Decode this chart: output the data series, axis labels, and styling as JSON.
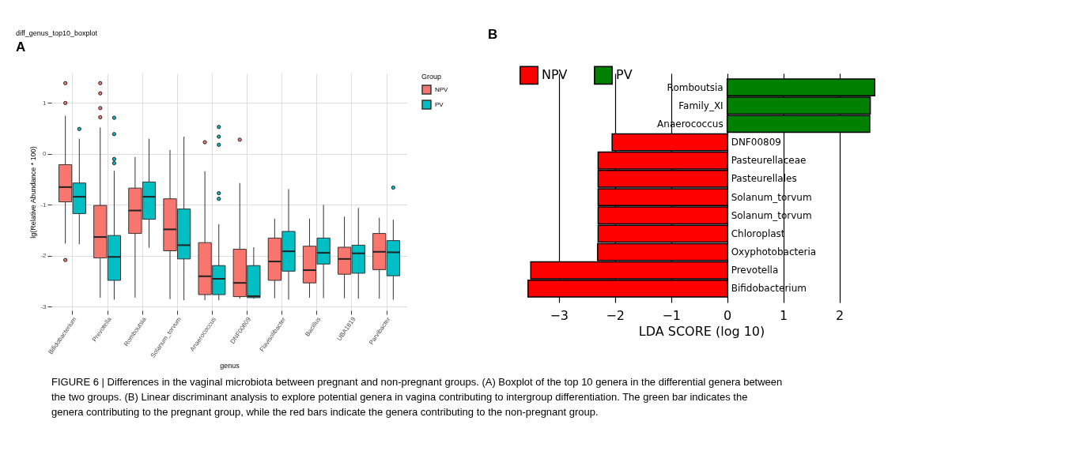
{
  "chart_data": [
    {
      "type": "box",
      "title": "diff_genus_top10_boxplot",
      "xlabel": "genus",
      "ylabel": "lg(Relative Abundance * 100)",
      "legend_title": "Group",
      "legend": "right",
      "grid": true,
      "categories": [
        "Bifidobacterium",
        "Prevotella",
        "Romboutsia",
        "Solanum_torvum",
        "Anaerococcus",
        "DNF00809",
        "Flavisolibacter",
        "Bacillus",
        "UBA1819",
        "Parvibacter"
      ],
      "ylim": [
        -3.07,
        1.58
      ],
      "yticks": [
        -3,
        -2,
        -1,
        0,
        1
      ],
      "annotations": [
        "A"
      ],
      "series": [
        {
          "name": "NPV",
          "color": "#f8766d",
          "boxes": [
            {
              "low": -1.76,
              "q1": -0.94,
              "median": -0.65,
              "q3": -0.21,
              "high": 0.75,
              "outliers": [
                1.39,
                1.0,
                -2.08
              ]
            },
            {
              "low": -2.82,
              "q1": -2.04,
              "median": -1.63,
              "q3": -1.01,
              "high": 0.52,
              "outliers": [
                1.39,
                1.19,
                0.9,
                0.72
              ]
            },
            {
              "low": -2.82,
              "q1": -1.56,
              "median": -1.11,
              "q3": -0.67,
              "high": -0.06
            },
            {
              "low": -2.85,
              "q1": -1.9,
              "median": -1.48,
              "q3": -0.88,
              "high": 0.08
            },
            {
              "low": -2.87,
              "q1": -2.76,
              "median": -2.4,
              "q3": -1.74,
              "high": -0.34,
              "outliers": [
                0.23
              ]
            },
            {
              "low": -2.84,
              "q1": -2.8,
              "median": -2.53,
              "q3": -1.87,
              "high": -0.57,
              "outliers": [
                0.28
              ]
            },
            {
              "low": -2.83,
              "q1": -2.48,
              "median": -2.11,
              "q3": -1.65,
              "high": -1.27
            },
            {
              "low": -2.82,
              "q1": -2.53,
              "median": -2.28,
              "q3": -1.81,
              "high": -1.27
            },
            {
              "low": -2.83,
              "q1": -2.36,
              "median": -2.06,
              "q3": -1.83,
              "high": -1.23
            },
            {
              "low": -2.84,
              "q1": -2.27,
              "median": -1.92,
              "q3": -1.56,
              "high": -1.25
            }
          ]
        },
        {
          "name": "PV",
          "color": "#00bfc4",
          "boxes": [
            {
              "low": -1.77,
              "q1": -1.17,
              "median": -0.84,
              "q3": -0.57,
              "high": 0.3,
              "outliers": [
                0.49
              ]
            },
            {
              "low": -2.86,
              "q1": -2.48,
              "median": -2.02,
              "q3": -1.6,
              "high": -0.33,
              "outliers": [
                0.71,
                0.39,
                -0.1,
                -0.18
              ]
            },
            {
              "low": -1.84,
              "q1": -1.28,
              "median": -0.84,
              "q3": -0.55,
              "high": 0.3
            },
            {
              "low": -2.87,
              "q1": -2.06,
              "median": -1.79,
              "q3": -1.08,
              "high": 0.34
            },
            {
              "low": -2.87,
              "q1": -2.76,
              "median": -2.45,
              "q3": -2.19,
              "high": -1.38,
              "outliers": [
                0.53,
                0.34,
                0.18,
                -0.77,
                -0.88
              ]
            },
            {
              "low": -2.84,
              "q1": -2.82,
              "median": -2.79,
              "q3": -2.19,
              "high": -1.83
            },
            {
              "low": -2.86,
              "q1": -2.3,
              "median": -1.91,
              "q3": -1.52,
              "high": -0.69
            },
            {
              "low": -2.83,
              "q1": -2.16,
              "median": -1.94,
              "q3": -1.65,
              "high": -1.0
            },
            {
              "low": -2.84,
              "q1": -2.34,
              "median": -1.95,
              "q3": -1.79,
              "high": -1.06
            },
            {
              "low": -2.86,
              "q1": -2.39,
              "median": -1.93,
              "q3": -1.7,
              "high": -1.29,
              "outliers": [
                -0.66
              ]
            }
          ]
        }
      ]
    },
    {
      "type": "bar",
      "orientation": "horizontal",
      "xlabel": "LDA SCORE (log 10)",
      "legend": "top left",
      "grid": "x",
      "categories": [
        "Romboutsia",
        "Family_XI",
        "Anaerococcus",
        "DNF00809",
        "Pasteurellaceae",
        "Pasteurellales",
        "Solanum_torvum",
        "Solanum_torvum",
        "Chloroplast",
        "Oxyphotobacteria",
        "Prevotella",
        "Bifidobacterium"
      ],
      "xlim": [
        -3.56,
        2.64
      ],
      "xticks": [
        {
          "value": -3,
          "label": "−3"
        },
        {
          "value": -2,
          "label": "−2"
        },
        {
          "value": -1,
          "label": "−1"
        },
        0,
        1,
        2
      ],
      "series": [
        {
          "name": "NPV",
          "color": "#ff0000",
          "values": [
            null,
            null,
            null,
            -2.05,
            -2.3,
            -2.3,
            -2.3,
            -2.3,
            -2.3,
            -2.31,
            -3.5,
            -3.55
          ]
        },
        {
          "name": "PV",
          "color": "#008000",
          "values": [
            2.63,
            2.55,
            2.54,
            null,
            null,
            null,
            null,
            null,
            null,
            null,
            null,
            null
          ]
        }
      ],
      "annotations": [
        "B",
        "FIGURE 6 | Differences in the vaginal microbiota between pregnant and non-pregnant groups. (A) Boxplot of the top 10 genera in the differential genera between the two groups. (B) Linear discriminant analysis to explore potential genera in vagina contributing to intergroup differentiation. The green bar indicates the genera contributing to the pregnant group, while the red bars indicate the genera contributing to the non-pregnant group."
      ]
    }
  ]
}
